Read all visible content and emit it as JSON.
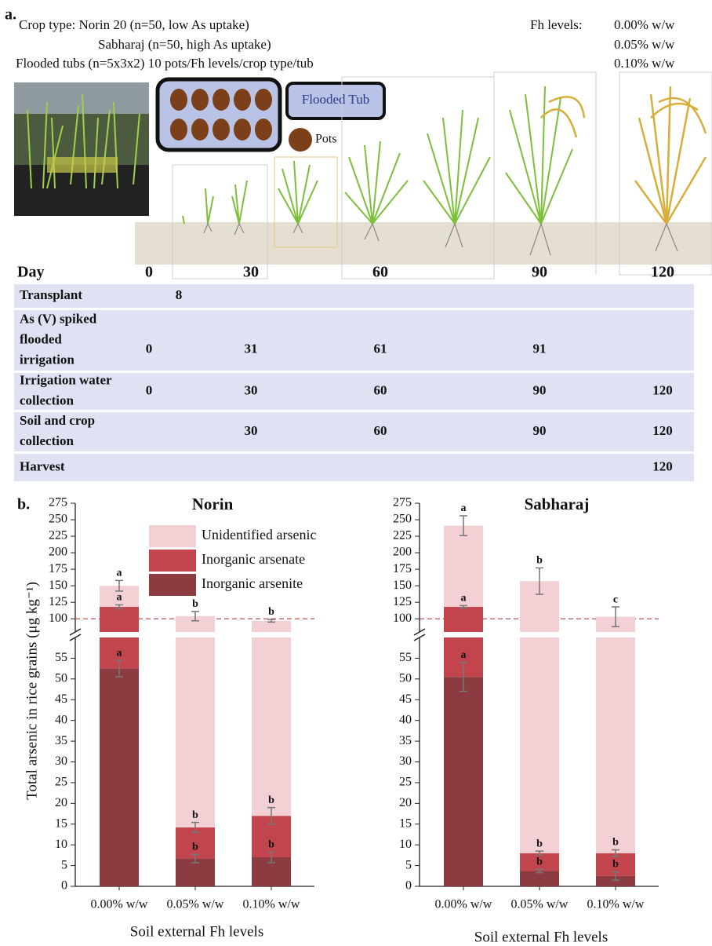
{
  "panel_a": {
    "label": "a.",
    "design_lines": [
      "Crop type: Norin 20 (n=50, low As uptake)",
      "Sabharaj (n=50, high As uptake)",
      "Flooded tubs (n=5x3x2) 10 pots/Fh levels/crop type/tub"
    ],
    "fh_title": "Fh levels:",
    "fh_levels": [
      "0.00% w/w",
      "0.05% w/w",
      "0.10% w/w"
    ],
    "tub_label": "Flooded Tub",
    "pots_label": "Pots",
    "timeline": {
      "header": "Day",
      "days": [
        0,
        30,
        60,
        90,
        120
      ]
    },
    "table": {
      "rows": [
        {
          "label": [
            "Transplant"
          ],
          "cells": [
            8,
            null,
            null,
            null,
            null
          ]
        },
        {
          "label": [
            "As (V) spiked",
            "flooded",
            "irrigation"
          ],
          "cells": [
            0,
            31,
            61,
            91,
            null
          ]
        },
        {
          "label": [
            "Irrigation water",
            "collection"
          ],
          "cells": [
            0,
            30,
            60,
            90,
            120
          ]
        },
        {
          "label": [
            "Soil and crop",
            "collection"
          ],
          "cells": [
            null,
            30,
            60,
            90,
            120
          ]
        },
        {
          "label": [
            "Harvest"
          ],
          "cells": [
            null,
            null,
            null,
            null,
            120
          ]
        }
      ]
    }
  },
  "panel_b_label": "b.",
  "chart_data": [
    {
      "type": "bar",
      "stacked": true,
      "title": "Norin",
      "ylabel": "Total arsenic in rice grains (μg kg⁻¹)",
      "xlabel": "Soil external Fh levels",
      "categories": [
        "0.00% w/w",
        "0.05% w/w",
        "0.10% w/w"
      ],
      "ylim": [
        0,
        275
      ],
      "ybreak": [
        60,
        80
      ],
      "yticks": [
        0,
        5,
        10,
        15,
        20,
        25,
        30,
        35,
        40,
        45,
        50,
        55,
        100,
        125,
        150,
        175,
        200,
        225,
        250,
        275
      ],
      "reference_line": 100,
      "reference_color": "#b04040",
      "legend": "upper right",
      "series": [
        {
          "name": "Inorganic arsenite",
          "color": "#8c3b41",
          "values": [
            52.5,
            6.7,
            7
          ],
          "errors": [
            2,
            1,
            1.3
          ],
          "letters": [
            "a",
            "b",
            "b"
          ]
        },
        {
          "name": "Inorganic arsenate",
          "color": "#c2444c",
          "values": [
            65.5,
            7.5,
            10
          ],
          "errors": [
            3,
            1.2,
            2
          ],
          "letters": [
            "a",
            "b",
            "b"
          ]
        },
        {
          "name": "Unidentified arsenic",
          "color": "#f3d0d3",
          "values": [
            32,
            89.8,
            80
          ],
          "errors": [
            8,
            7,
            2
          ],
          "letters": [
            "a",
            "b",
            "b"
          ]
        }
      ]
    },
    {
      "type": "bar",
      "stacked": true,
      "title": "Sabharaj",
      "xlabel": "Soil external Fh levels",
      "categories": [
        "0.00% w/w",
        "0.05% w/w",
        "0.10% w/w"
      ],
      "ylim": [
        0,
        275
      ],
      "ybreak": [
        60,
        80
      ],
      "yticks": [
        0,
        5,
        10,
        15,
        20,
        25,
        30,
        35,
        40,
        45,
        50,
        55,
        100,
        125,
        150,
        175,
        200,
        225,
        250,
        275
      ],
      "reference_line": 100,
      "reference_color": "#b04040",
      "series": [
        {
          "color": "#8c3b41",
          "values": [
            50.5,
            3.7,
            2.5
          ],
          "errors": [
            3.5,
            0.4,
            1
          ],
          "letters": [
            "a",
            "b",
            "b"
          ]
        },
        {
          "color": "#c2444c",
          "values": [
            67.5,
            4.3,
            5.5
          ],
          "errors": [
            2,
            0.5,
            0.8
          ],
          "letters": [
            "a",
            "b",
            "b"
          ]
        },
        {
          "color": "#f3d0d3",
          "values": [
            123,
            149,
            95
          ],
          "errors": [
            15,
            20,
            15
          ],
          "letters": [
            "a",
            "b",
            "c"
          ]
        }
      ]
    }
  ]
}
